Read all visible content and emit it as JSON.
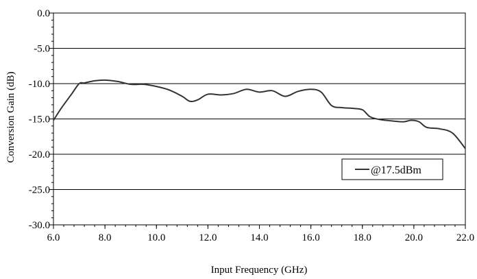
{
  "chart_data": {
    "type": "line",
    "title": "",
    "xlabel": "Input Frequency (GHz)",
    "ylabel": "Conversion Gain (dB)",
    "xlim": [
      6.0,
      22.0
    ],
    "ylim": [
      -30.0,
      0.0
    ],
    "x_ticks": [
      "6.0",
      "8.0",
      "10.0",
      "12.0",
      "14.0",
      "16.0",
      "18.0",
      "20.0",
      "22.0"
    ],
    "y_ticks": [
      "0.0",
      "-5.0",
      "-10.0",
      "-15.0",
      "-20.0",
      "-25.0",
      "-30.0"
    ],
    "grid": "horizontal",
    "legend_position": "right",
    "series": [
      {
        "name": "@17.5dBm",
        "color": "#333333",
        "x": [
          6.0,
          6.3,
          6.7,
          7.0,
          7.2,
          7.6,
          8.0,
          8.5,
          9.0,
          9.5,
          10.0,
          10.5,
          11.0,
          11.3,
          11.6,
          12.0,
          12.5,
          13.0,
          13.5,
          14.0,
          14.5,
          15.0,
          15.5,
          16.0,
          16.4,
          16.8,
          17.2,
          17.6,
          18.0,
          18.3,
          18.7,
          19.2,
          19.6,
          19.9,
          20.2,
          20.5,
          21.0,
          21.5,
          22.0
        ],
        "y": [
          -15.2,
          -13.5,
          -11.5,
          -10.0,
          -9.9,
          -9.6,
          -9.5,
          -9.7,
          -10.1,
          -10.1,
          -10.4,
          -10.9,
          -11.8,
          -12.5,
          -12.3,
          -11.5,
          -11.6,
          -11.4,
          -10.8,
          -11.2,
          -11.0,
          -11.8,
          -11.1,
          -10.8,
          -11.2,
          -13.1,
          -13.4,
          -13.5,
          -13.7,
          -14.7,
          -15.1,
          -15.3,
          -15.4,
          -15.2,
          -15.4,
          -16.2,
          -16.4,
          -17.0,
          -19.2
        ]
      }
    ]
  }
}
